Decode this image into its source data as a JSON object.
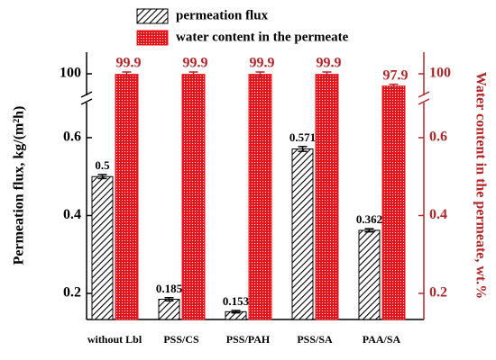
{
  "chart_data": {
    "type": "bar",
    "categories": [
      "without Lbl",
      "PSS/CS",
      "PSS/PAH",
      "PSS/SA",
      "PAA/SA"
    ],
    "series": [
      {
        "name": "permeation flux",
        "color": "#000000",
        "values": [
          0.5,
          0.185,
          0.153,
          0.571,
          0.362
        ],
        "errors": [
          0.005,
          0.004,
          0.003,
          0.006,
          0.004
        ]
      },
      {
        "name": "water content in the permeate",
        "color": "#e8141c",
        "axis": "y2",
        "values": [
          99.9,
          99.9,
          99.9,
          99.9,
          97.9
        ],
        "errors": [
          0.4,
          0.4,
          0.4,
          0.4,
          0.3
        ]
      }
    ],
    "ylabel": "Permeation flux, kg/(m²h)",
    "y2label": "Water content in the permeate, wt.%",
    "ylim": [
      0.133,
      103.7
    ],
    "ybreak": [
      0.69,
      96.3
    ],
    "yticks": [
      0.2,
      0.4,
      0.6,
      100
    ],
    "y2lim": [
      0.133,
      103.7
    ],
    "y2break": [
      0.69,
      96.3
    ],
    "y2ticks": [
      0.2,
      0.4,
      0.6,
      100
    ]
  }
}
